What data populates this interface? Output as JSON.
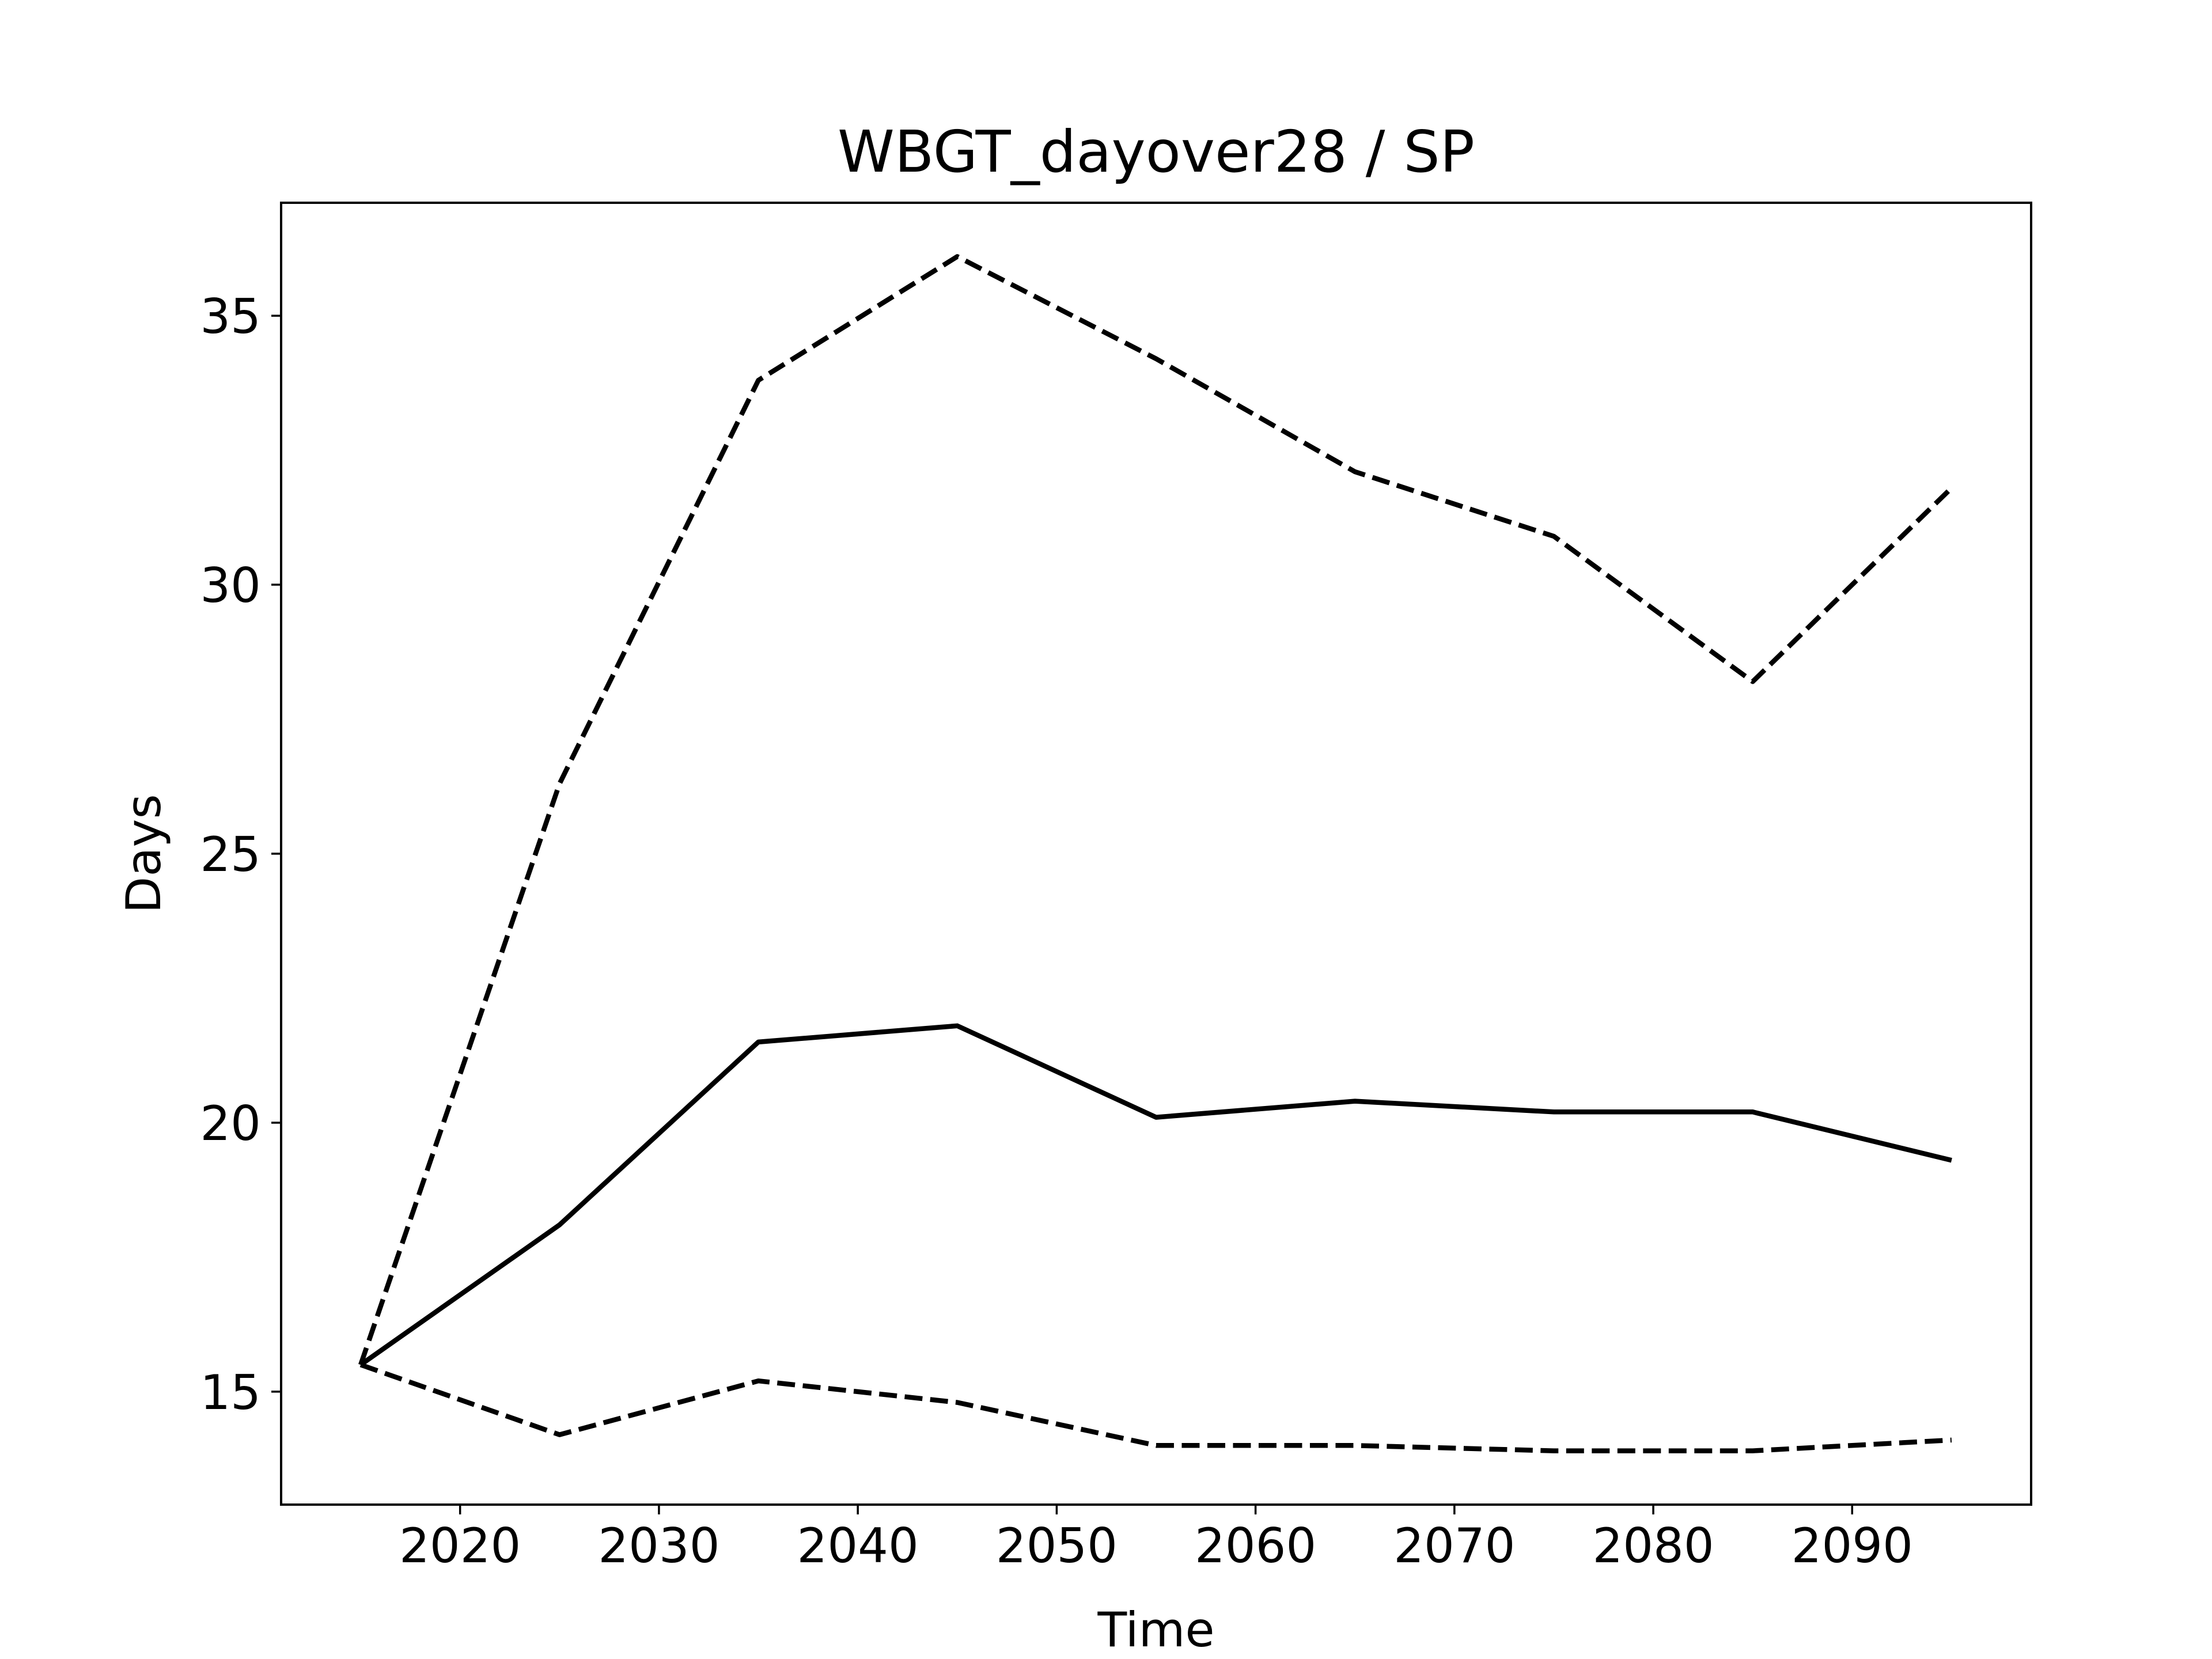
{
  "chart_data": {
    "type": "line",
    "title": "WBGT_dayover28 / SP",
    "xlabel": "Time",
    "ylabel": "Days",
    "xlim": [
      2011,
      2099
    ],
    "ylim": [
      12.9,
      37.1
    ],
    "xticks": [
      2020,
      2030,
      2040,
      2050,
      2060,
      2070,
      2080,
      2090
    ],
    "yticks": [
      15,
      20,
      25,
      30,
      35
    ],
    "grid": false,
    "legend": "none",
    "x": [
      2015,
      2025,
      2035,
      2045,
      2055,
      2065,
      2075,
      2085,
      2095
    ],
    "series": [
      {
        "style": "dashed",
        "color": "#000000",
        "values": [
          15.5,
          26.3,
          33.8,
          36.1,
          34.2,
          32.1,
          30.9,
          28.2,
          31.8
        ]
      },
      {
        "style": "solid",
        "color": "#000000",
        "values": [
          15.5,
          18.1,
          21.5,
          21.8,
          20.1,
          20.4,
          20.2,
          20.2,
          19.3
        ]
      },
      {
        "style": "dashed",
        "color": "#000000",
        "values": [
          15.5,
          14.2,
          15.2,
          14.8,
          14.0,
          14.0,
          13.9,
          13.9,
          14.1
        ]
      }
    ]
  }
}
